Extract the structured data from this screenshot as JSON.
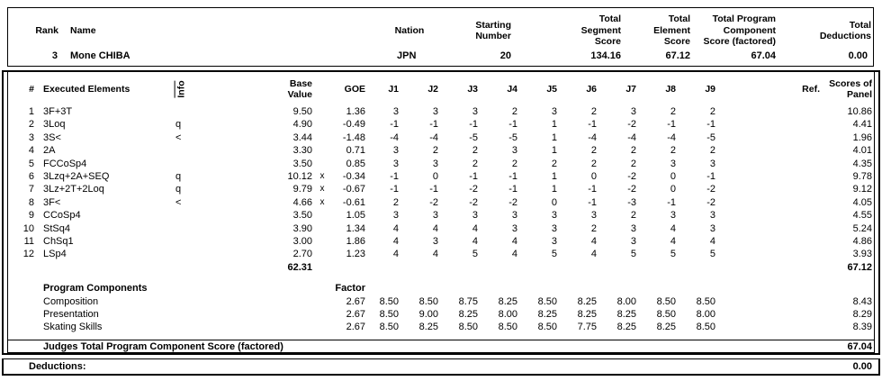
{
  "header": {
    "rank_label": "Rank",
    "name_label": "Name",
    "nation_label": "Nation",
    "starting_label": "Starting\nNumber",
    "segment_label": "Total\nSegment\nScore",
    "element_label": "Total\nElement\nScore",
    "pcs_label": "Total Program\nComponent\nScore (factored)",
    "deductions_label": "Total\nDeductions",
    "rank": "3",
    "name": "Mone CHIBA",
    "nation": "JPN",
    "starting_number": "20",
    "segment_score": "134.16",
    "element_score": "67.12",
    "pcs_score": "67.04",
    "deductions": "0.00"
  },
  "elements_table": {
    "headers": {
      "num": "#",
      "executed": "Executed Elements",
      "info": "Info",
      "base": "Base\nValue",
      "goe": "GOE",
      "judges": [
        "J1",
        "J2",
        "J3",
        "J4",
        "J5",
        "J6",
        "J7",
        "J8",
        "J9"
      ],
      "ref": "Ref.",
      "panel": "Scores of\nPanel"
    },
    "rows": [
      {
        "num": "1",
        "name": "3F+3T",
        "info": "",
        "base": "9.50",
        "x": "",
        "goe": "1.36",
        "judges": [
          "3",
          "3",
          "3",
          "2",
          "3",
          "2",
          "3",
          "2",
          "2"
        ],
        "ref": "",
        "panel": "10.86"
      },
      {
        "num": "2",
        "name": "3Loq",
        "info": "q",
        "base": "4.90",
        "x": "",
        "goe": "-0.49",
        "judges": [
          "-1",
          "-1",
          "-1",
          "-1",
          "1",
          "-1",
          "-2",
          "-1",
          "-1"
        ],
        "ref": "",
        "panel": "4.41"
      },
      {
        "num": "3",
        "name": "3S<",
        "info": "<",
        "base": "3.44",
        "x": "",
        "goe": "-1.48",
        "judges": [
          "-4",
          "-4",
          "-5",
          "-5",
          "1",
          "-4",
          "-4",
          "-4",
          "-5"
        ],
        "ref": "",
        "panel": "1.96"
      },
      {
        "num": "4",
        "name": "2A",
        "info": "",
        "base": "3.30",
        "x": "",
        "goe": "0.71",
        "judges": [
          "3",
          "2",
          "2",
          "3",
          "1",
          "2",
          "2",
          "2",
          "2"
        ],
        "ref": "",
        "panel": "4.01"
      },
      {
        "num": "5",
        "name": "FCCoSp4",
        "info": "",
        "base": "3.50",
        "x": "",
        "goe": "0.85",
        "judges": [
          "3",
          "3",
          "2",
          "2",
          "2",
          "2",
          "2",
          "3",
          "3"
        ],
        "ref": "",
        "panel": "4.35"
      },
      {
        "num": "6",
        "name": "3Lzq+2A+SEQ",
        "info": "q",
        "base": "10.12",
        "x": "x",
        "goe": "-0.34",
        "judges": [
          "-1",
          "0",
          "-1",
          "-1",
          "1",
          "0",
          "-2",
          "0",
          "-1"
        ],
        "ref": "",
        "panel": "9.78"
      },
      {
        "num": "7",
        "name": "3Lz+2T+2Loq",
        "info": "q",
        "base": "9.79",
        "x": "x",
        "goe": "-0.67",
        "judges": [
          "-1",
          "-1",
          "-2",
          "-1",
          "1",
          "-1",
          "-2",
          "0",
          "-2"
        ],
        "ref": "",
        "panel": "9.12"
      },
      {
        "num": "8",
        "name": "3F<",
        "info": "<",
        "base": "4.66",
        "x": "x",
        "goe": "-0.61",
        "judges": [
          "2",
          "-2",
          "-2",
          "-2",
          "0",
          "-1",
          "-3",
          "-1",
          "-2"
        ],
        "ref": "",
        "panel": "4.05"
      },
      {
        "num": "9",
        "name": "CCoSp4",
        "info": "",
        "base": "3.50",
        "x": "",
        "goe": "1.05",
        "judges": [
          "3",
          "3",
          "3",
          "3",
          "3",
          "3",
          "2",
          "3",
          "3"
        ],
        "ref": "",
        "panel": "4.55"
      },
      {
        "num": "10",
        "name": "StSq4",
        "info": "",
        "base": "3.90",
        "x": "",
        "goe": "1.34",
        "judges": [
          "4",
          "4",
          "4",
          "3",
          "3",
          "2",
          "3",
          "4",
          "3"
        ],
        "ref": "",
        "panel": "5.24"
      },
      {
        "num": "11",
        "name": "ChSq1",
        "info": "",
        "base": "3.00",
        "x": "",
        "goe": "1.86",
        "judges": [
          "4",
          "3",
          "4",
          "4",
          "3",
          "4",
          "3",
          "4",
          "4"
        ],
        "ref": "",
        "panel": "4.86"
      },
      {
        "num": "12",
        "name": "LSp4",
        "info": "",
        "base": "2.70",
        "x": "",
        "goe": "1.23",
        "judges": [
          "4",
          "4",
          "5",
          "4",
          "5",
          "4",
          "5",
          "5",
          "5"
        ],
        "ref": "",
        "panel": "3.93"
      }
    ],
    "total_base": "62.31",
    "total_panel": "67.12"
  },
  "components": {
    "title": "Program Components",
    "factor_label": "Factor",
    "rows": [
      {
        "name": "Composition",
        "factor": "2.67",
        "judges": [
          "8.50",
          "8.50",
          "8.75",
          "8.25",
          "8.50",
          "8.25",
          "8.00",
          "8.50",
          "8.50"
        ],
        "panel": "8.43"
      },
      {
        "name": "Presentation",
        "factor": "2.67",
        "judges": [
          "8.50",
          "9.00",
          "8.25",
          "8.00",
          "8.25",
          "8.25",
          "8.25",
          "8.50",
          "8.00"
        ],
        "panel": "8.29"
      },
      {
        "name": "Skating Skills",
        "factor": "2.67",
        "judges": [
          "8.50",
          "8.25",
          "8.50",
          "8.50",
          "8.50",
          "7.75",
          "8.25",
          "8.25",
          "8.50"
        ],
        "panel": "8.39"
      }
    ],
    "total_label": "Judges Total Program Component Score (factored)",
    "total": "67.04"
  },
  "deductions_row": {
    "label": "Deductions:",
    "value": "0.00"
  }
}
